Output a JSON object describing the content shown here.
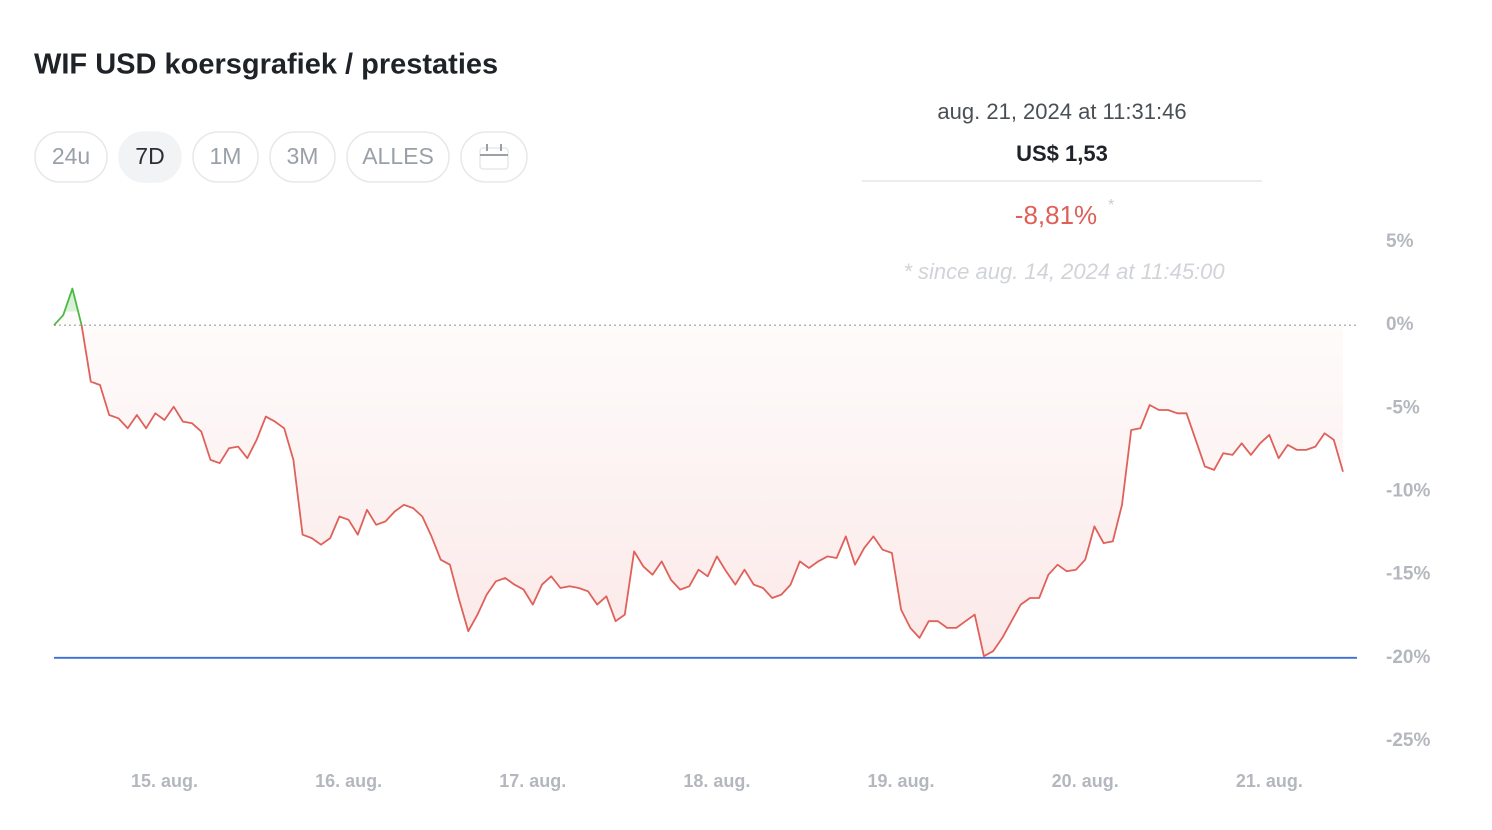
{
  "header": {
    "title": "WIF USD koersgrafiek / prestaties"
  },
  "buttons": [
    "24u",
    "7D",
    "1M",
    "3M",
    "ALLES"
  ],
  "tooltip": {
    "date": "aug. 21, 2024 at 11:31:46",
    "price": "US$ 1,53",
    "change": "-8,81%",
    "asterisk": "*",
    "since": "* since aug. 14, 2024 at 11:45:00"
  },
  "chart_data": {
    "type": "line",
    "x": [
      14.4,
      14.45,
      14.5,
      14.55,
      14.6,
      14.65,
      14.7,
      14.75,
      14.8,
      14.85,
      14.9,
      14.95,
      15,
      15.05,
      15.1,
      15.15,
      15.2,
      15.25,
      15.3,
      15.35,
      15.4,
      15.45,
      15.5,
      15.55,
      15.6,
      15.65,
      15.7,
      15.75,
      15.8,
      15.85,
      15.9,
      15.95,
      16,
      16.05,
      16.1,
      16.15,
      16.2,
      16.25,
      16.3,
      16.35,
      16.4,
      16.45,
      16.5,
      16.55,
      16.6,
      16.65,
      16.7,
      16.75,
      16.8,
      16.85,
      16.9,
      16.95,
      17,
      17.05,
      17.1,
      17.15,
      17.2,
      17.25,
      17.3,
      17.35,
      17.4,
      17.45,
      17.5,
      17.55,
      17.6,
      17.65,
      17.7,
      17.75,
      17.8,
      17.85,
      17.9,
      17.95,
      18,
      18.05,
      18.1,
      18.15,
      18.2,
      18.25,
      18.3,
      18.35,
      18.4,
      18.45,
      18.5,
      18.55,
      18.6,
      18.65,
      18.7,
      18.75,
      18.8,
      18.85,
      18.9,
      18.95,
      19,
      19.05,
      19.1,
      19.15,
      19.2,
      19.25,
      19.3,
      19.35,
      19.4,
      19.45,
      19.5,
      19.55,
      19.6,
      19.65,
      19.7,
      19.75,
      19.8,
      19.85,
      19.9,
      19.95,
      20,
      20.05,
      20.1,
      20.15,
      20.2,
      20.25,
      20.3,
      20.35,
      20.4,
      20.45,
      20.5,
      20.55,
      20.6,
      20.65,
      20.7,
      20.75,
      20.8,
      20.85,
      20.9,
      20.95,
      21,
      21.05,
      21.1,
      21.15,
      21.2,
      21.25,
      21.3,
      21.35,
      21.4
    ],
    "series": [
      {
        "color": "#e0605a",
        "positive_color": "#4cb944",
        "values": [
          0,
          0.6,
          2.2,
          0,
          -3.4,
          -3.6,
          -5.4,
          -5.6,
          -6.2,
          -5.4,
          -6.2,
          -5.3,
          -5.7,
          -4.9,
          -5.8,
          -5.9,
          -6.4,
          -8.1,
          -8.3,
          -7.4,
          -7.3,
          -8.0,
          -6.9,
          -5.5,
          -5.8,
          -6.2,
          -8.1,
          -12.6,
          -12.8,
          -13.2,
          -12.8,
          -11.5,
          -11.7,
          -12.6,
          -11.1,
          -12.0,
          -11.8,
          -11.2,
          -10.8,
          -11.0,
          -11.5,
          -12.7,
          -14.1,
          -14.4,
          -16.5,
          -18.4,
          -17.4,
          -16.2,
          -15.4,
          -15.2,
          -15.6,
          -15.9,
          -16.8,
          -15.6,
          -15.1,
          -15.8,
          -15.7,
          -15.8,
          -16.0,
          -16.8,
          -16.3,
          -17.8,
          -17.4,
          -13.6,
          -14.5,
          -15.0,
          -14.2,
          -15.3,
          -15.9,
          -15.7,
          -14.7,
          -15.1,
          -13.9,
          -14.8,
          -15.6,
          -14.7,
          -15.6,
          -15.8,
          -16.4,
          -16.2,
          -15.6,
          -14.2,
          -14.6,
          -14.2,
          -13.9,
          -14.0,
          -12.7,
          -14.4,
          -13.4,
          -12.7,
          -13.5,
          -13.7,
          -17.1,
          -18.2,
          -18.8,
          -17.8,
          -17.8,
          -18.2,
          -18.2,
          -17.8,
          -17.4,
          -19.9,
          -19.6,
          -18.8,
          -17.8,
          -16.8,
          -16.4,
          -16.4,
          -15.0,
          -14.4,
          -14.8,
          -14.7,
          -14.1,
          -12.1,
          -13.1,
          -13.0,
          -10.8,
          -6.3,
          -6.2,
          -4.8,
          -5.1,
          -5.1,
          -5.3,
          -5.3,
          -6.9,
          -8.5,
          -8.7,
          -7.7,
          -7.8,
          -7.1,
          -7.8,
          -7.1,
          -6.6,
          -8.0,
          -7.2,
          -7.5,
          -7.5,
          -7.3,
          -6.5,
          -6.9,
          -8.81
        ]
      }
    ],
    "baseline": 0,
    "reference_line": {
      "value": -20,
      "color": "#3c6fd9"
    },
    "xlim": [
      14.4,
      21.4
    ],
    "xticks": [
      {
        "value": 15,
        "label": "15. aug."
      },
      {
        "value": 16,
        "label": "16. aug."
      },
      {
        "value": 17,
        "label": "17. aug."
      },
      {
        "value": 18,
        "label": "18. aug."
      },
      {
        "value": 19,
        "label": "19. aug."
      },
      {
        "value": 20,
        "label": "20. aug."
      },
      {
        "value": 21,
        "label": "21. aug."
      }
    ],
    "ylim": [
      -25,
      5
    ],
    "yticks": [
      {
        "value": 5,
        "label": "5%"
      },
      {
        "value": 0,
        "label": "0%"
      },
      {
        "value": -5,
        "label": "-5%"
      },
      {
        "value": -10,
        "label": "-10%"
      },
      {
        "value": -15,
        "label": "-15%"
      },
      {
        "value": -20,
        "label": "-20%"
      },
      {
        "value": -25,
        "label": "-25%"
      }
    ]
  }
}
